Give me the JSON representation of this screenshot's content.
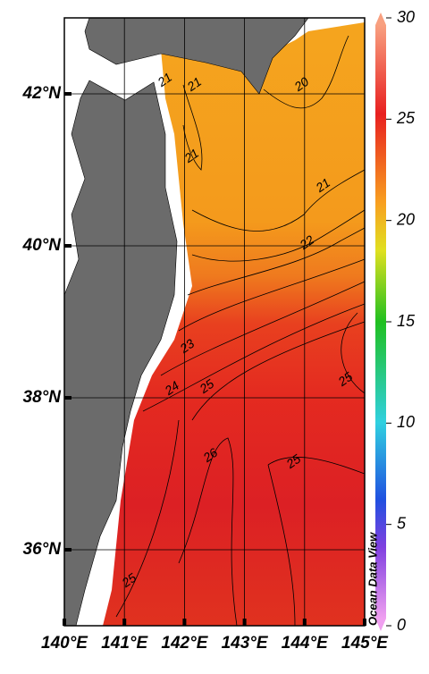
{
  "map": {
    "lonlim": [
      140,
      145
    ],
    "latlim": [
      35,
      43
    ],
    "lon_ticks": [
      {
        "value": 140,
        "label": "140°E"
      },
      {
        "value": 141,
        "label": "141°E"
      },
      {
        "value": 142,
        "label": "142°E"
      },
      {
        "value": 143,
        "label": "143°E"
      },
      {
        "value": 144,
        "label": "144°E"
      },
      {
        "value": 145,
        "label": "145°E"
      }
    ],
    "lat_ticks": [
      {
        "value": 36,
        "label": "36°N"
      },
      {
        "value": 38,
        "label": "38°N"
      },
      {
        "value": 40,
        "label": "40°N"
      },
      {
        "value": 42,
        "label": "42°N"
      }
    ],
    "contour_labels": [
      21,
      21,
      20,
      21,
      21,
      22,
      23,
      24,
      25,
      25,
      26,
      25,
      25
    ],
    "colorbar": {
      "lim": [
        0,
        30
      ],
      "ticks": [
        0,
        5,
        10,
        15,
        20,
        25,
        30
      ]
    },
    "credit": "Ocean Data View"
  }
}
